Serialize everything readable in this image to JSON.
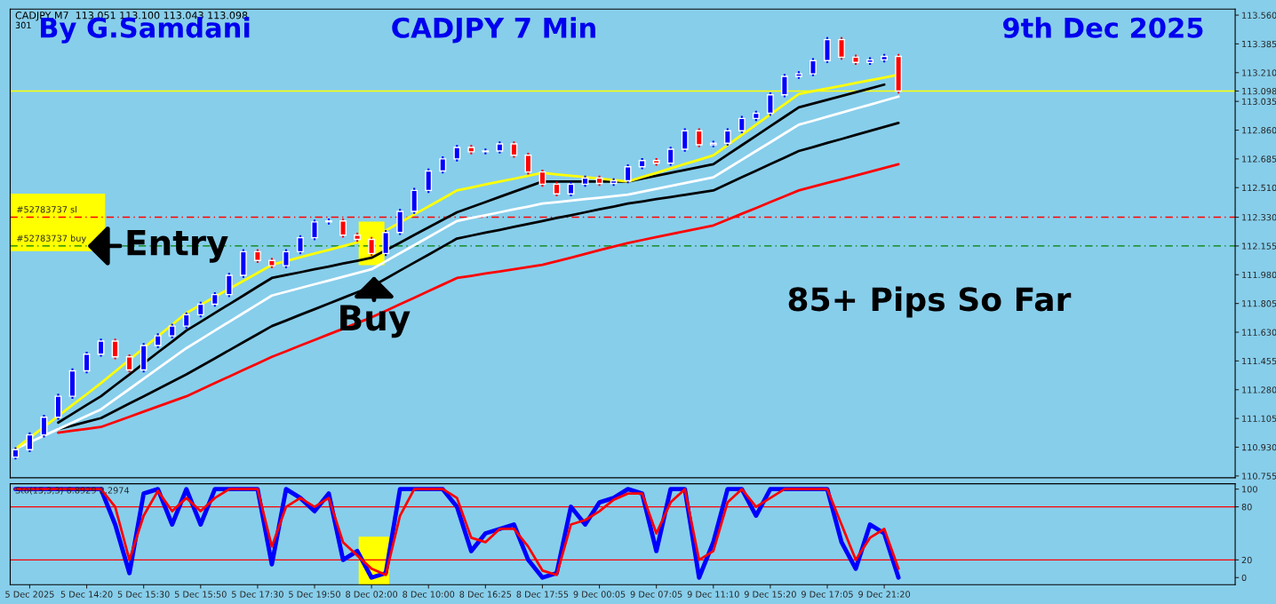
{
  "chart_data": [
    {
      "type": "candlestick",
      "title": "CADJPY 7 Min",
      "categories": [
        null,
        null,
        null,
        null,
        null,
        null,
        null,
        null,
        null,
        null,
        null,
        null,
        null,
        null,
        null,
        null,
        null,
        null,
        null,
        null,
        null,
        null,
        null,
        null,
        null,
        null,
        null,
        null,
        null,
        null,
        null,
        null,
        null,
        null,
        null,
        null,
        null,
        null,
        null,
        null,
        null,
        null,
        null,
        null,
        null,
        null,
        null,
        null,
        null,
        null,
        null,
        null,
        null,
        null,
        null,
        null,
        null,
        null,
        null,
        null,
        null,
        null,
        null,
        null,
        null,
        null,
        null,
        null,
        null,
        null,
        null,
        null,
        null,
        null,
        null,
        null,
        null,
        null,
        null,
        null,
        null,
        null,
        null,
        null,
        null,
        null
      ],
      "ohlc": [
        [
          110.87,
          110.93,
          110.855,
          110.915
        ],
        [
          110.915,
          111.02,
          110.9,
          111.005
        ],
        [
          111.005,
          111.127,
          110.99,
          111.112
        ],
        [
          111.112,
          111.255,
          111.097,
          111.24
        ],
        [
          111.24,
          111.41,
          111.225,
          111.395
        ],
        [
          111.395,
          111.511,
          111.38,
          111.496
        ],
        [
          111.496,
          111.591,
          111.481,
          111.576
        ],
        [
          111.576,
          111.591,
          111.465,
          111.48
        ],
        [
          111.48,
          111.495,
          111.385,
          111.4
        ],
        [
          111.4,
          111.564,
          111.385,
          111.549
        ],
        [
          111.549,
          111.623,
          111.534,
          111.608
        ],
        [
          111.608,
          111.682,
          111.593,
          111.667
        ],
        [
          111.667,
          111.751,
          111.652,
          111.736
        ],
        [
          111.736,
          111.815,
          111.721,
          111.8
        ],
        [
          111.8,
          111.874,
          111.785,
          111.859
        ],
        [
          111.859,
          111.991,
          111.844,
          111.976
        ],
        [
          111.976,
          112.135,
          111.961,
          112.12
        ],
        [
          112.12,
          112.135,
          112.052,
          112.067
        ],
        [
          112.067,
          112.082,
          112.02,
          112.035
        ],
        [
          112.035,
          112.135,
          112.02,
          112.12
        ],
        [
          112.12,
          112.22,
          112.105,
          112.205
        ],
        [
          112.205,
          112.316,
          112.19,
          112.301
        ],
        [
          112.301,
          112.322,
          112.286,
          112.307
        ],
        [
          112.307,
          112.322,
          112.206,
          112.221
        ],
        [
          112.221,
          112.236,
          112.18,
          112.195
        ],
        [
          112.195,
          112.21,
          112.094,
          112.109
        ],
        [
          112.109,
          112.252,
          112.094,
          112.237
        ],
        [
          112.237,
          112.38,
          112.222,
          112.365
        ],
        [
          112.365,
          112.508,
          112.35,
          112.493
        ],
        [
          112.493,
          112.626,
          112.478,
          112.611
        ],
        [
          112.611,
          112.7,
          112.596,
          112.685
        ],
        [
          112.685,
          112.77,
          112.67,
          112.755
        ],
        [
          112.755,
          112.77,
          112.713,
          112.728
        ],
        [
          112.728,
          112.748,
          112.713,
          112.733
        ],
        [
          112.733,
          112.791,
          112.718,
          112.776
        ],
        [
          112.776,
          112.791,
          112.692,
          112.707
        ],
        [
          112.707,
          112.722,
          112.59,
          112.605
        ],
        [
          112.605,
          112.62,
          112.516,
          112.531
        ],
        [
          112.531,
          112.546,
          112.457,
          112.472
        ],
        [
          112.472,
          112.546,
          112.457,
          112.531
        ],
        [
          112.531,
          112.583,
          112.516,
          112.568
        ],
        [
          112.568,
          112.583,
          112.521,
          112.536
        ],
        [
          112.536,
          112.567,
          112.521,
          112.552
        ],
        [
          112.552,
          112.652,
          112.537,
          112.637
        ],
        [
          112.637,
          112.69,
          112.622,
          112.675
        ],
        [
          112.675,
          112.69,
          112.644,
          112.659
        ],
        [
          112.659,
          112.759,
          112.644,
          112.744
        ],
        [
          112.744,
          112.871,
          112.729,
          112.856
        ],
        [
          112.856,
          112.871,
          112.756,
          112.771
        ],
        [
          112.771,
          112.795,
          112.756,
          112.78
        ],
        [
          112.78,
          112.871,
          112.765,
          112.856
        ],
        [
          112.856,
          112.946,
          112.841,
          112.931
        ],
        [
          112.931,
          112.978,
          112.916,
          112.963
        ],
        [
          112.963,
          113.09,
          112.948,
          113.075
        ],
        [
          113.075,
          113.202,
          113.06,
          113.187
        ],
        [
          113.187,
          113.218,
          113.172,
          113.203
        ],
        [
          113.203,
          113.298,
          113.188,
          113.283
        ],
        [
          113.283,
          113.426,
          113.268,
          113.411
        ],
        [
          113.411,
          113.426,
          113.289,
          113.304
        ],
        [
          113.304,
          113.319,
          113.257,
          113.272
        ],
        [
          113.272,
          113.303,
          113.257,
          113.288
        ],
        [
          113.288,
          113.324,
          113.273,
          113.309
        ],
        [
          113.309,
          113.324,
          113.083,
          113.098
        ],
        null,
        null,
        null,
        null,
        null,
        null,
        null,
        null,
        null,
        null,
        null,
        null,
        null,
        null,
        null,
        null,
        null,
        null,
        null,
        null,
        null,
        null,
        null
      ],
      "colors": [
        "#0000ff",
        "#0000ff",
        "#0000ff",
        "#0000ff",
        "#0000ff",
        "#0000ff",
        "#0000ff",
        "#ff0000",
        "#ff0000",
        "#0000ff",
        "#0000ff",
        "#0000ff",
        "#0000ff",
        "#0000ff",
        "#0000ff",
        "#0000ff",
        "#0000ff",
        "#ff0000",
        "#ff0000",
        "#0000ff",
        "#0000ff",
        "#0000ff",
        "#0000ff",
        "#ff0000",
        "#ff0000",
        "#ff0000",
        "#0000ff",
        "#0000ff",
        "#0000ff",
        "#0000ff",
        "#0000ff",
        "#0000ff",
        "#ff0000",
        "#0000ff",
        "#0000ff",
        "#ff0000",
        "#ff0000",
        "#ff0000",
        "#ff0000",
        "#0000ff",
        "#0000ff",
        "#ff0000",
        "#0000ff",
        "#0000ff",
        "#0000ff",
        "#ff0000",
        "#0000ff",
        "#0000ff",
        "#ff0000",
        "#0000ff",
        "#0000ff",
        "#0000ff",
        "#0000ff",
        "#0000ff",
        "#0000ff",
        "#0000ff",
        "#0000ff",
        "#0000ff",
        "#ff0000",
        "#ff0000",
        "#0000ff",
        "#0000ff",
        "#ff0000",
        null,
        null,
        null,
        null,
        null,
        null,
        null,
        null,
        null,
        null,
        null,
        null,
        null,
        null,
        null,
        null,
        null,
        null,
        null,
        null,
        null,
        null,
        null
      ],
      "series": [
        {
          "type": "line",
          "color": "#ffff00",
          "values": [
            110.92,
            110.987,
            111.053,
            111.12,
            111.187,
            111.253,
            111.32,
            111.391,
            111.462,
            111.534,
            111.605,
            111.676,
            111.747,
            111.796,
            111.845,
            111.894,
            111.942,
            111.991,
            112.04,
            112.063,
            112.086,
            112.109,
            112.131,
            112.154,
            112.177,
            112.2,
            112.249,
            112.298,
            112.347,
            112.395,
            112.444,
            112.493,
            112.511,
            112.529,
            112.547,
            112.564,
            112.582,
            112.6,
            112.591,
            112.582,
            112.574,
            112.565,
            112.556,
            112.547,
            112.574,
            112.6,
            112.627,
            112.654,
            112.68,
            112.707,
            112.769,
            112.831,
            112.893,
            112.956,
            113.018,
            113.08,
            113.097,
            113.113,
            113.13,
            113.147,
            113.164,
            113.18,
            113.197,
            null,
            null,
            null,
            null,
            null,
            null,
            null,
            null,
            null,
            null,
            null,
            null,
            null,
            null,
            null,
            null,
            null,
            null,
            null,
            null,
            null,
            null,
            null
          ]
        },
        {
          "type": "line",
          "color": "#000000",
          "values": [
            null,
            null,
            null,
            111.08,
            111.133,
            111.187,
            111.24,
            111.307,
            111.373,
            111.44,
            111.507,
            111.573,
            111.64,
            111.693,
            111.747,
            111.8,
            111.853,
            111.907,
            111.96,
            111.978,
            111.995,
            112.013,
            112.03,
            112.048,
            112.065,
            112.083,
            112.129,
            112.175,
            112.222,
            112.268,
            112.314,
            112.36,
            112.391,
            112.422,
            112.454,
            112.485,
            112.516,
            112.547,
            112.547,
            112.547,
            112.547,
            112.547,
            112.547,
            112.547,
            112.565,
            112.582,
            112.6,
            112.618,
            112.635,
            112.653,
            112.711,
            112.768,
            112.826,
            112.884,
            112.941,
            112.999,
            113.022,
            113.045,
            113.068,
            113.091,
            113.114,
            113.137,
            null,
            null,
            null,
            null,
            null,
            null,
            null,
            null,
            null,
            null,
            null,
            null,
            null,
            null,
            null,
            null,
            null,
            null,
            null,
            null,
            null,
            null,
            null,
            null
          ]
        },
        {
          "type": "line",
          "color": "#ffffff",
          "values": [
            110.92,
            110.96,
            111.0,
            111.04,
            111.08,
            111.12,
            111.16,
            111.222,
            111.284,
            111.347,
            111.409,
            111.471,
            111.533,
            111.586,
            111.64,
            111.693,
            111.746,
            111.8,
            111.853,
            111.876,
            111.899,
            111.922,
            111.944,
            111.967,
            111.99,
            112.013,
            112.062,
            112.111,
            112.16,
            112.209,
            112.258,
            112.307,
            112.325,
            112.342,
            112.36,
            112.378,
            112.395,
            112.413,
            112.422,
            112.431,
            112.44,
            112.449,
            112.458,
            112.467,
            112.485,
            112.502,
            112.52,
            112.538,
            112.555,
            112.573,
            112.626,
            112.68,
            112.733,
            112.786,
            112.84,
            112.893,
            112.917,
            112.942,
            112.966,
            112.991,
            113.015,
            113.04,
            113.064,
            null,
            null,
            null,
            null,
            null,
            null,
            null,
            null,
            null,
            null,
            null,
            null,
            null,
            null,
            null,
            null,
            null,
            null,
            null,
            null,
            null,
            null,
            null
          ]
        },
        {
          "type": "line",
          "color": "#000000",
          "values": [
            null,
            null,
            null,
            111.04,
            111.062,
            111.085,
            111.107,
            111.151,
            111.196,
            111.24,
            111.284,
            111.329,
            111.373,
            111.422,
            111.471,
            111.52,
            111.569,
            111.618,
            111.667,
            111.701,
            111.736,
            111.77,
            111.804,
            111.839,
            111.873,
            111.907,
            111.956,
            112.005,
            112.054,
            112.102,
            112.151,
            112.2,
            112.218,
            112.236,
            112.253,
            112.271,
            112.289,
            112.307,
            112.325,
            112.342,
            112.36,
            112.378,
            112.395,
            112.413,
            112.426,
            112.44,
            112.453,
            112.466,
            112.48,
            112.493,
            112.533,
            112.573,
            112.613,
            112.653,
            112.693,
            112.733,
            112.757,
            112.782,
            112.806,
            112.831,
            112.855,
            112.88,
            112.904,
            null,
            null,
            null,
            null,
            null,
            null,
            null,
            null,
            null,
            null,
            null,
            null,
            null,
            null,
            null,
            null,
            null,
            null,
            null,
            null,
            null,
            null,
            null
          ]
        },
        {
          "type": "line",
          "color": "#ff0000",
          "values": [
            null,
            null,
            null,
            111.019,
            111.03,
            111.042,
            111.053,
            111.084,
            111.115,
            111.147,
            111.178,
            111.209,
            111.24,
            111.28,
            111.32,
            111.36,
            111.4,
            111.44,
            111.48,
            111.514,
            111.549,
            111.583,
            111.617,
            111.651,
            111.686,
            111.72,
            111.76,
            111.8,
            111.84,
            111.88,
            111.92,
            111.96,
            111.973,
            111.987,
            112.0,
            112.013,
            112.027,
            112.04,
            112.062,
            112.084,
            112.107,
            112.129,
            112.151,
            112.173,
            112.191,
            112.209,
            112.227,
            112.244,
            112.262,
            112.28,
            112.315,
            112.351,
            112.386,
            112.422,
            112.457,
            112.493,
            112.516,
            112.539,
            112.561,
            112.584,
            112.607,
            112.63,
            112.653,
            null,
            null,
            null,
            null,
            null,
            null,
            null,
            null,
            null,
            null,
            null,
            null,
            null,
            null,
            null,
            null,
            null,
            null,
            null,
            null,
            null,
            null,
            null
          ]
        }
      ],
      "ylim": [
        110.744,
        113.597
      ],
      "yticks": [
        {
          "value": 110.755,
          "label": "110.755"
        },
        {
          "value": 110.93,
          "label": "110.930"
        },
        {
          "value": 111.105,
          "label": "111.105"
        },
        {
          "value": 111.28,
          "label": "111.280"
        },
        {
          "value": 111.455,
          "label": "111.455"
        },
        {
          "value": 111.63,
          "label": "111.630"
        },
        {
          "value": 111.805,
          "label": "111.805"
        },
        {
          "value": 111.98,
          "label": "111.980"
        },
        {
          "value": 112.155,
          "label": "112.155"
        },
        {
          "value": 112.33,
          "label": "112.330"
        },
        {
          "value": 112.51,
          "label": "112.510"
        },
        {
          "value": 112.685,
          "label": "112.685"
        },
        {
          "value": 112.86,
          "label": "112.860"
        },
        {
          "value": 113.035,
          "label": "113.035"
        },
        {
          "value": 113.098,
          "label": "113.098"
        },
        {
          "value": 113.21,
          "label": "113.210"
        },
        {
          "value": 113.385,
          "label": "113.385"
        },
        {
          "value": 113.56,
          "label": "113.560"
        }
      ],
      "tick_labels": "y",
      "grid": false,
      "ref_lines": [
        {
          "axis": "y",
          "value": 113.098,
          "color": "#ffff00",
          "line_style": "solid"
        },
        {
          "axis": "y",
          "value": 112.33,
          "label": "#52783737 sl",
          "color": "#ff0000",
          "line_style": "dashed"
        },
        {
          "axis": "y",
          "value": 112.155,
          "label": "#52783737 buy",
          "color": "#008000",
          "line_style": "dashed"
        }
      ],
      "annotations": [
        "CADJPY,M7  113.051 113.100 113.043 113.098",
        "301",
        "By G.Samdani",
        "9th Dec 2025",
        {
          "text": "Entry",
          "y": 112.155
        },
        "Buy",
        "85+ Pips So Far"
      ]
    },
    {
      "type": "line",
      "categories": [
        null,
        "5 Dec 2025",
        null,
        null,
        null,
        "5 Dec 14:20",
        null,
        null,
        null,
        "5 Dec 15:30",
        null,
        null,
        null,
        "5 Dec 15:50",
        null,
        null,
        null,
        "5 Dec 17:30",
        null,
        null,
        null,
        "5 Dec 19:50",
        null,
        null,
        null,
        "8 Dec 02:00",
        null,
        null,
        null,
        "8 Dec 10:00",
        null,
        null,
        null,
        "8 Dec 16:25",
        null,
        null,
        null,
        "8 Dec 17:55",
        null,
        null,
        null,
        "9 Dec 00:05",
        null,
        null,
        null,
        "9 Dec 07:05",
        null,
        null,
        null,
        "9 Dec 11:10",
        null,
        null,
        null,
        "9 Dec 15:20",
        null,
        null,
        null,
        "9 Dec 17:05",
        null,
        null,
        null,
        "9 Dec 21:20",
        null,
        null,
        null,
        null,
        null,
        null,
        null,
        null,
        null,
        null,
        null,
        null,
        null,
        null,
        null,
        null,
        null,
        null,
        null,
        null,
        null,
        null,
        null,
        null
      ],
      "series": [
        {
          "color": "#0000ff",
          "values": [
            100,
            100,
            100,
            100,
            100,
            100,
            100,
            60,
            5,
            95,
            100,
            60,
            100,
            60,
            100,
            100,
            100,
            100,
            15,
            100,
            90,
            75,
            95,
            20,
            30,
            0,
            5,
            100,
            100,
            100,
            100,
            80,
            30,
            50,
            55,
            60,
            20,
            0,
            5,
            80,
            60,
            85,
            90,
            100,
            95,
            30,
            100,
            100,
            0,
            40,
            100,
            100,
            70,
            100,
            100,
            100,
            100,
            100,
            40,
            10,
            60,
            50,
            0,
            null,
            null,
            null,
            null,
            null,
            null,
            null,
            null,
            null,
            null,
            null,
            null,
            null,
            null,
            null,
            null,
            null,
            null,
            null,
            null,
            null,
            null,
            null
          ]
        },
        {
          "color": "#ff0000",
          "values": [
            100,
            100,
            100,
            100,
            100,
            100,
            100,
            80,
            20,
            70,
            98,
            75,
            90,
            75,
            90,
            100,
            100,
            100,
            35,
            80,
            90,
            80,
            90,
            40,
            25,
            10,
            3,
            70,
            100,
            100,
            100,
            90,
            45,
            40,
            55,
            55,
            35,
            8,
            3,
            60,
            65,
            75,
            88,
            95,
            95,
            50,
            85,
            100,
            20,
            30,
            85,
            100,
            80,
            90,
            100,
            100,
            100,
            100,
            60,
            20,
            45,
            55,
            10,
            null,
            null,
            null,
            null,
            null,
            null,
            null,
            null,
            null,
            null,
            null,
            null,
            null,
            null,
            null,
            null,
            null,
            null,
            null,
            null,
            null,
            null,
            null
          ]
        }
      ],
      "ylim": [
        -8,
        106
      ],
      "yticks": [
        0,
        20,
        80,
        100
      ],
      "grid": false,
      "ref_lines": [
        {
          "axis": "y",
          "value": 80,
          "color": "#ff0000",
          "line_style": "solid"
        },
        {
          "axis": "y",
          "value": 20,
          "color": "#ff0000",
          "line_style": "solid"
        }
      ],
      "annotations": [
        "Sto(15,3,3) 6.8929 2.2974"
      ]
    }
  ]
}
